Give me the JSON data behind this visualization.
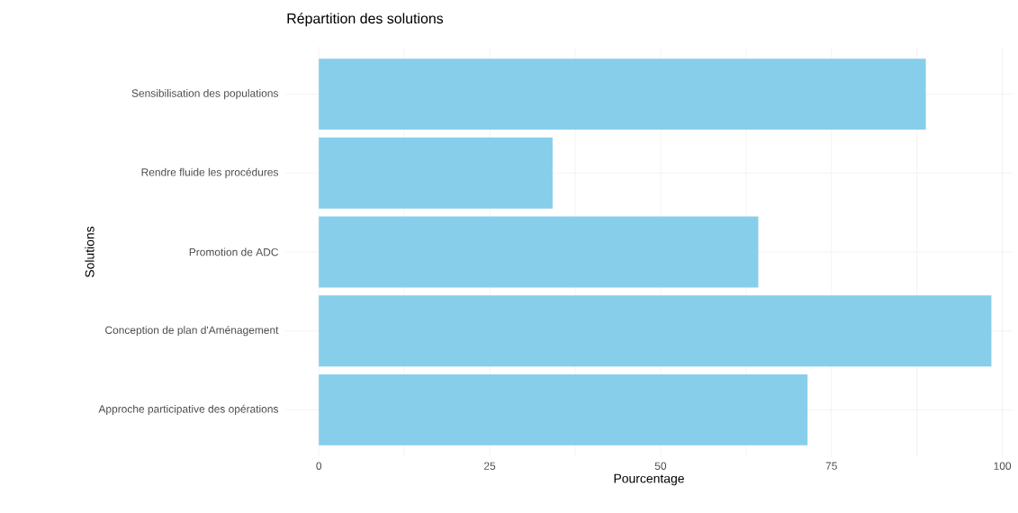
{
  "chart_data": {
    "type": "bar",
    "orientation": "horizontal",
    "title": "Répartition des solutions",
    "xlabel": "Pourcentage",
    "ylabel": "Solutions",
    "categories": [
      "Sensibilisation des populations",
      "Rendre fluide les procédures",
      "Promotion de ADC",
      "Conception de plan d'Aménagement",
      "Approche participative des opérations"
    ],
    "values": [
      88.8,
      34.2,
      64.3,
      98.4,
      71.5
    ],
    "color": "#87ceeb",
    "xlim": [
      -4.9,
      101.5
    ],
    "xticks": [
      0,
      {
        "value": 12.5,
        "label": null
      },
      25,
      {
        "value": 37.5,
        "label": null
      },
      50,
      {
        "value": 62.5,
        "label": null
      },
      75,
      {
        "value": 87.5,
        "label": null
      },
      100
    ],
    "grid": true
  }
}
